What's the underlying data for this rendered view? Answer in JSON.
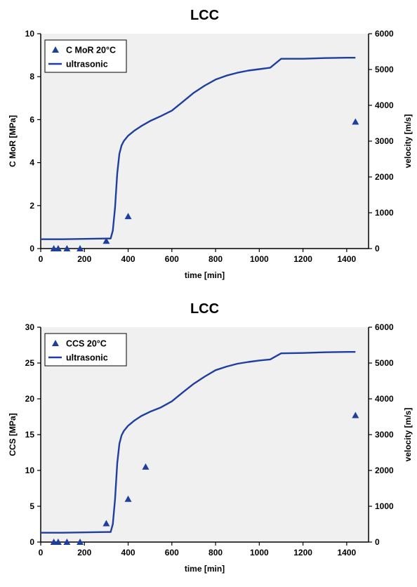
{
  "colors": {
    "series": "#1f3f9e",
    "plot_background": "#f0f0f0",
    "axis": "#000000"
  },
  "chart_data": [
    {
      "type": "scatter",
      "title": "LCC",
      "xlabel": "time [min]",
      "ylabel": "C MoR [MPa]",
      "y2label": "velocity [m/s]",
      "xlim": [
        0,
        1500
      ],
      "ylim": [
        0,
        10
      ],
      "y2lim": [
        0,
        6000
      ],
      "xticks": [
        "0",
        "200",
        "400",
        "600",
        "800",
        "1000",
        "1200",
        "1400"
      ],
      "yticks": [
        "0",
        "2",
        "4",
        "6",
        "8",
        "10"
      ],
      "y2ticks": [
        "0",
        "1000",
        "2000",
        "3000",
        "4000",
        "5000",
        "6000"
      ],
      "grid": false,
      "legend_position": "top-left",
      "series": [
        {
          "name": "C MoR 20°C",
          "type": "scatter",
          "marker": "triangle",
          "axis": "left",
          "points": [
            [
              60,
              0
            ],
            [
              80,
              0
            ],
            [
              120,
              0
            ],
            [
              180,
              0
            ],
            [
              300,
              0.35
            ],
            [
              400,
              1.5
            ],
            [
              1440,
              5.9
            ]
          ]
        },
        {
          "name": "ultrasonic",
          "type": "line",
          "axis": "right",
          "points": [
            [
              0,
              260
            ],
            [
              100,
              260
            ],
            [
              200,
              270
            ],
            [
              300,
              280
            ],
            [
              320,
              280
            ],
            [
              330,
              500
            ],
            [
              340,
              1150
            ],
            [
              350,
              2100
            ],
            [
              360,
              2650
            ],
            [
              370,
              2880
            ],
            [
              380,
              3000
            ],
            [
              400,
              3150
            ],
            [
              430,
              3300
            ],
            [
              460,
              3420
            ],
            [
              500,
              3560
            ],
            [
              550,
              3700
            ],
            [
              600,
              3850
            ],
            [
              650,
              4100
            ],
            [
              700,
              4350
            ],
            [
              750,
              4550
            ],
            [
              800,
              4720
            ],
            [
              850,
              4830
            ],
            [
              900,
              4910
            ],
            [
              950,
              4970
            ],
            [
              1000,
              5010
            ],
            [
              1050,
              5050
            ],
            [
              1100,
              5300
            ],
            [
              1200,
              5300
            ],
            [
              1300,
              5320
            ],
            [
              1400,
              5330
            ],
            [
              1440,
              5330
            ]
          ]
        }
      ]
    },
    {
      "type": "scatter",
      "title": "LCC",
      "xlabel": "time [min]",
      "ylabel": "CCS [MPa]",
      "y2label": "velocity [m/s]",
      "xlim": [
        0,
        1500
      ],
      "ylim": [
        0,
        30
      ],
      "y2lim": [
        0,
        6000
      ],
      "xticks": [
        "0",
        "200",
        "400",
        "600",
        "800",
        "1000",
        "1200",
        "1400"
      ],
      "yticks": [
        "0",
        "5",
        "10",
        "15",
        "20",
        "25",
        "30"
      ],
      "y2ticks": [
        "0",
        "1000",
        "2000",
        "3000",
        "4000",
        "5000",
        "6000"
      ],
      "grid": false,
      "legend_position": "top-left",
      "series": [
        {
          "name": "CCS 20°C",
          "type": "scatter",
          "marker": "triangle",
          "axis": "left",
          "points": [
            [
              60,
              0
            ],
            [
              80,
              0
            ],
            [
              120,
              0
            ],
            [
              180,
              0
            ],
            [
              300,
              2.6
            ],
            [
              400,
              6
            ],
            [
              480,
              10.5
            ],
            [
              1440,
              17.7
            ]
          ]
        },
        {
          "name": "ultrasonic",
          "type": "line",
          "axis": "right",
          "points": [
            [
              0,
              260
            ],
            [
              100,
              260
            ],
            [
              200,
              270
            ],
            [
              300,
              280
            ],
            [
              320,
              280
            ],
            [
              330,
              500
            ],
            [
              340,
              1200
            ],
            [
              350,
              2200
            ],
            [
              360,
              2750
            ],
            [
              370,
              2980
            ],
            [
              380,
              3100
            ],
            [
              400,
              3250
            ],
            [
              430,
              3400
            ],
            [
              460,
              3520
            ],
            [
              500,
              3640
            ],
            [
              550,
              3760
            ],
            [
              600,
              3930
            ],
            [
              650,
              4180
            ],
            [
              700,
              4420
            ],
            [
              750,
              4620
            ],
            [
              800,
              4800
            ],
            [
              850,
              4900
            ],
            [
              900,
              4980
            ],
            [
              950,
              5030
            ],
            [
              1000,
              5070
            ],
            [
              1050,
              5100
            ],
            [
              1100,
              5270
            ],
            [
              1200,
              5280
            ],
            [
              1300,
              5300
            ],
            [
              1400,
              5310
            ],
            [
              1440,
              5310
            ]
          ]
        }
      ]
    }
  ]
}
